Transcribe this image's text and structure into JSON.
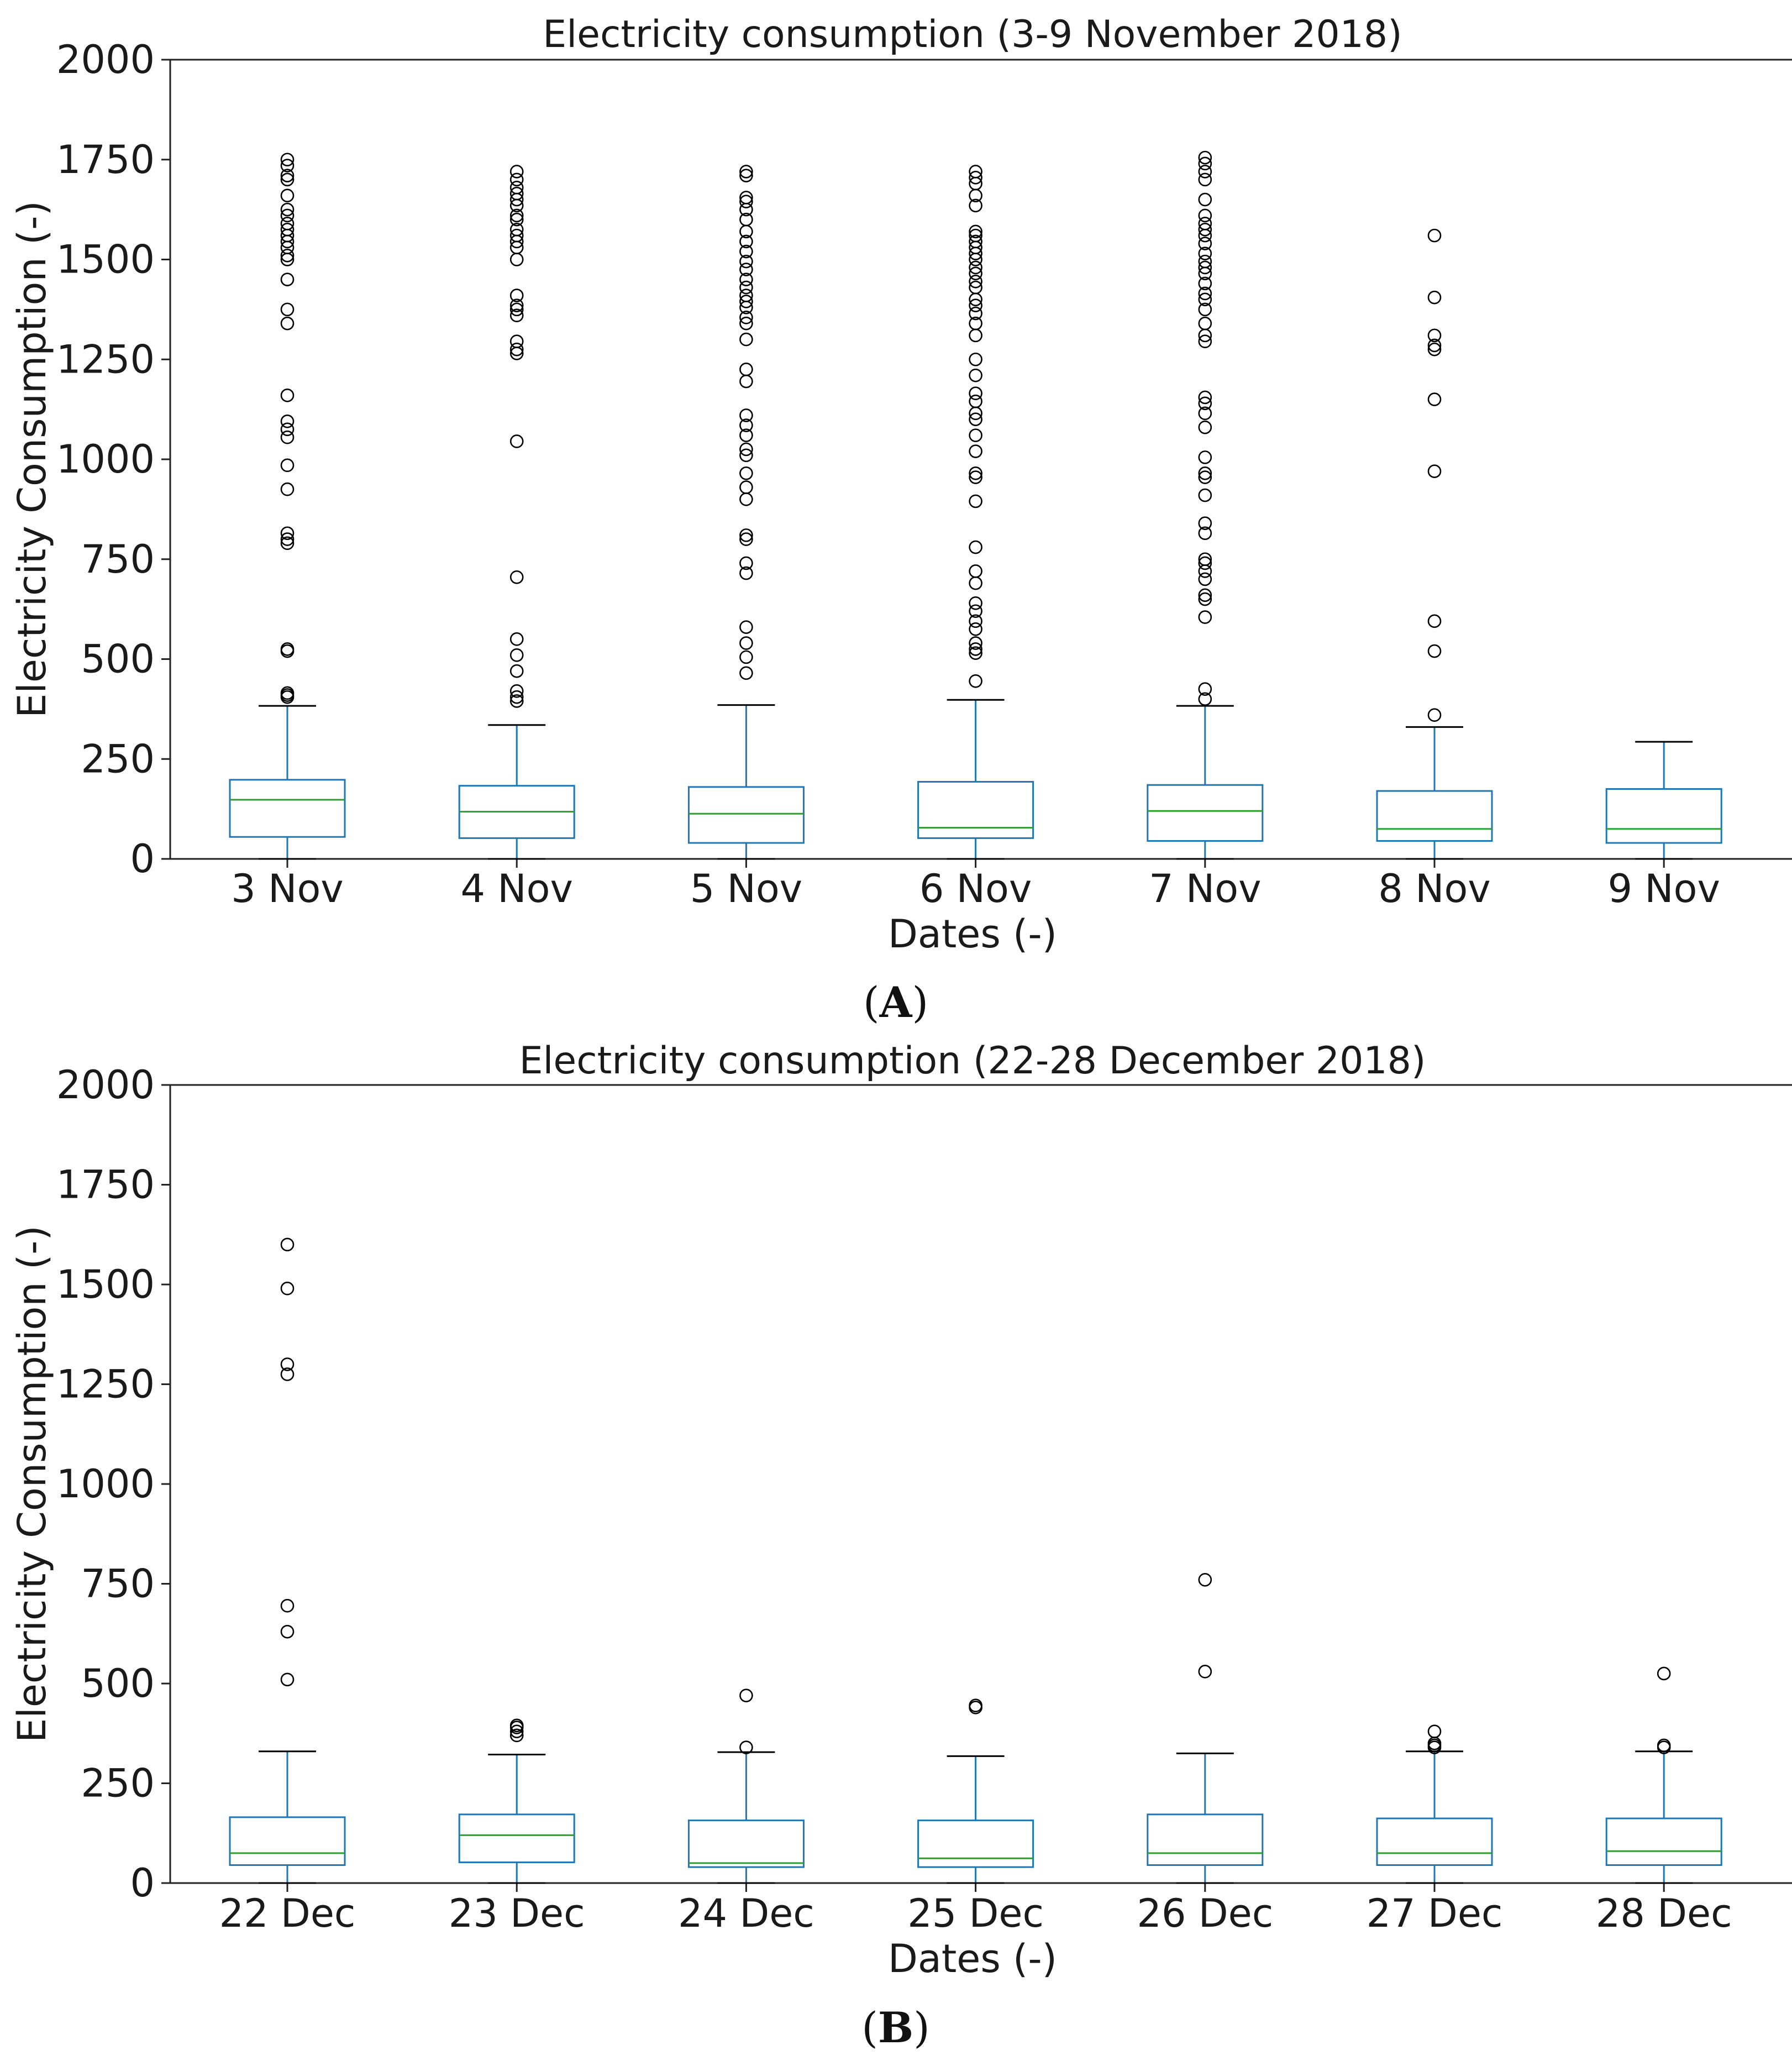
{
  "chart_data": [
    {
      "type": "box",
      "panel_label": "A",
      "title": "Electricity consumption (3-9 November 2018)",
      "xlabel": "Dates (-)",
      "ylabel": "Electricity Consumption (-)",
      "ylim": [
        0,
        2000
      ],
      "yticks": [
        0,
        250,
        500,
        750,
        1000,
        1250,
        1500,
        1750,
        2000
      ],
      "categories": [
        "3 Nov",
        "4 Nov",
        "5 Nov",
        "6 Nov",
        "7 Nov",
        "8 Nov",
        "9 Nov"
      ],
      "boxes": [
        {
          "min": 0,
          "q1": 55,
          "median": 148,
          "q3": 198,
          "max": 383,
          "outliers": [
            405,
            410,
            415,
            520,
            525,
            790,
            800,
            815,
            925,
            985,
            1055,
            1075,
            1095,
            1160,
            1340,
            1375,
            1450,
            1500,
            1510,
            1530,
            1545,
            1560,
            1575,
            1590,
            1610,
            1625,
            1660,
            1700,
            1710,
            1735,
            1750
          ]
        },
        {
          "min": 0,
          "q1": 52,
          "median": 118,
          "q3": 183,
          "max": 335,
          "outliers": [
            395,
            405,
            420,
            470,
            510,
            550,
            705,
            1045,
            1265,
            1275,
            1295,
            1360,
            1375,
            1385,
            1410,
            1500,
            1530,
            1545,
            1560,
            1575,
            1600,
            1610,
            1635,
            1650,
            1665,
            1680,
            1700,
            1720
          ]
        },
        {
          "min": 0,
          "q1": 40,
          "median": 113,
          "q3": 180,
          "max": 385,
          "outliers": [
            465,
            505,
            540,
            580,
            715,
            740,
            800,
            810,
            900,
            930,
            965,
            1010,
            1025,
            1060,
            1085,
            1110,
            1195,
            1225,
            1300,
            1340,
            1355,
            1380,
            1395,
            1410,
            1430,
            1450,
            1475,
            1495,
            1520,
            1545,
            1570,
            1600,
            1625,
            1645,
            1655,
            1710,
            1720
          ]
        },
        {
          "min": 0,
          "q1": 52,
          "median": 78,
          "q3": 193,
          "max": 398,
          "outliers": [
            445,
            515,
            525,
            540,
            575,
            595,
            620,
            640,
            690,
            720,
            780,
            895,
            955,
            965,
            1020,
            1060,
            1100,
            1115,
            1145,
            1165,
            1210,
            1250,
            1310,
            1340,
            1365,
            1385,
            1400,
            1430,
            1445,
            1465,
            1480,
            1500,
            1515,
            1530,
            1545,
            1560,
            1570,
            1635,
            1660,
            1690,
            1705,
            1720
          ]
        },
        {
          "min": 0,
          "q1": 45,
          "median": 120,
          "q3": 185,
          "max": 383,
          "outliers": [
            400,
            425,
            605,
            650,
            660,
            700,
            720,
            740,
            750,
            815,
            840,
            910,
            955,
            965,
            1005,
            1080,
            1115,
            1140,
            1155,
            1295,
            1310,
            1340,
            1375,
            1400,
            1415,
            1440,
            1465,
            1480,
            1495,
            1515,
            1540,
            1560,
            1575,
            1590,
            1610,
            1650,
            1700,
            1720,
            1740,
            1755
          ]
        },
        {
          "min": 0,
          "q1": 45,
          "median": 75,
          "q3": 170,
          "max": 330,
          "outliers": [
            360,
            520,
            595,
            970,
            1150,
            1275,
            1285,
            1310,
            1405,
            1560
          ]
        },
        {
          "min": 0,
          "q1": 40,
          "median": 75,
          "q3": 175,
          "max": 293,
          "outliers": []
        }
      ]
    },
    {
      "type": "box",
      "panel_label": "B",
      "title": "Electricity consumption (22-28 December 2018)",
      "xlabel": "Dates (-)",
      "ylabel": "Electricity Consumption (-)",
      "ylim": [
        0,
        2000
      ],
      "yticks": [
        0,
        250,
        500,
        750,
        1000,
        1250,
        1500,
        1750,
        2000
      ],
      "categories": [
        "22 Dec",
        "23 Dec",
        "24 Dec",
        "25 Dec",
        "26 Dec",
        "27 Dec",
        "28 Dec"
      ],
      "boxes": [
        {
          "min": 0,
          "q1": 45,
          "median": 75,
          "q3": 165,
          "max": 330,
          "outliers": [
            510,
            630,
            695,
            1275,
            1300,
            1490,
            1600
          ]
        },
        {
          "min": 0,
          "q1": 52,
          "median": 120,
          "q3": 172,
          "max": 322,
          "outliers": [
            370,
            380,
            390,
            395
          ]
        },
        {
          "min": 0,
          "q1": 40,
          "median": 50,
          "q3": 157,
          "max": 328,
          "outliers": [
            340,
            470
          ]
        },
        {
          "min": 0,
          "q1": 40,
          "median": 62,
          "q3": 157,
          "max": 318,
          "outliers": [
            440,
            445
          ]
        },
        {
          "min": 0,
          "q1": 45,
          "median": 75,
          "q3": 172,
          "max": 325,
          "outliers": [
            530,
            760
          ]
        },
        {
          "min": 0,
          "q1": 45,
          "median": 75,
          "q3": 162,
          "max": 330,
          "outliers": [
            340,
            345,
            350,
            380
          ]
        },
        {
          "min": 0,
          "q1": 45,
          "median": 80,
          "q3": 162,
          "max": 330,
          "outliers": [
            340,
            345,
            525
          ]
        }
      ]
    }
  ],
  "colors": {
    "box": "#1f77b4",
    "median": "#2ca02c",
    "whisker": "#1f77b4",
    "cap": "#000000",
    "flier": "#000000",
    "axes": "#222222"
  }
}
